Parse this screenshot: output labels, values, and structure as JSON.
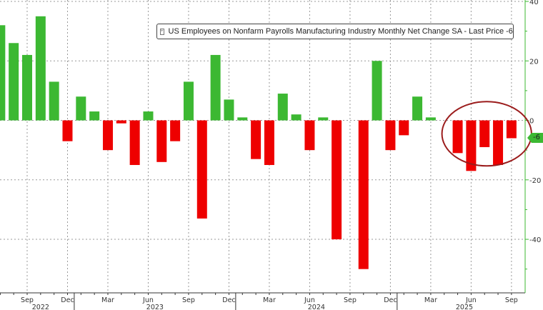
{
  "chart_data": {
    "type": "bar",
    "legend": {
      "label": "US Employees on Nonfarm Payrolls Manufacturing Industry Monthly Net Change SA - Last Price -6",
      "position": "top-center"
    },
    "last_price_label": "-6",
    "categories": [
      "Jul 2022",
      "Aug 2022",
      "Sep 2022",
      "Oct 2022",
      "Nov 2022",
      "Dec 2022",
      "Jan 2023",
      "Feb 2023",
      "Mar 2023",
      "Apr 2023",
      "May 2023",
      "Jun 2023",
      "Jul 2023",
      "Aug 2023",
      "Sep 2023",
      "Oct 2023",
      "Nov 2023",
      "Dec 2023",
      "Jan 2024",
      "Feb 2024",
      "Mar 2024",
      "Apr 2024",
      "May 2024",
      "Jun 2024",
      "Jul 2024",
      "Aug 2024",
      "Sep 2024",
      "Oct 2024",
      "Nov 2024",
      "Dec 2024",
      "Jan 2025",
      "Feb 2025",
      "Mar 2025",
      "Apr 2025",
      "May 2025",
      "Jun 2025",
      "Jul 2025",
      "Aug 2025",
      "Sep 2025"
    ],
    "values": [
      32,
      26,
      22,
      35,
      13,
      -7,
      8,
      3,
      -10,
      -1,
      -15,
      3,
      -14,
      -7,
      13,
      -33,
      22,
      7,
      1,
      -13,
      -15,
      9,
      2,
      -10,
      1,
      -40,
      0,
      -50,
      20,
      -10,
      -5,
      8,
      1,
      0,
      -11,
      -17,
      -9,
      -15,
      -6
    ],
    "positive_color": "#3cb832",
    "negative_color": "#ee0000",
    "ylim": [
      -58,
      40
    ],
    "yticks": [
      "40",
      "20",
      "0",
      "-20",
      "-40"
    ],
    "ytick_values": [
      40,
      20,
      0,
      -20,
      -40
    ],
    "y_axis_side": "right",
    "xtick_months": [
      "Sep",
      "Dec",
      "Mar",
      "Jun",
      "Sep",
      "Dec",
      "Mar",
      "Jun",
      "Sep",
      "Dec",
      "Mar",
      "Jun",
      "Sep"
    ],
    "xtick_indices": [
      2,
      5,
      8,
      11,
      14,
      17,
      20,
      23,
      26,
      29,
      32,
      35,
      38
    ],
    "years": [
      "2022",
      "2023",
      "2024",
      "2025"
    ],
    "year_label_indices": [
      3,
      11.5,
      23.5,
      34.5
    ],
    "year_separator_indices": [
      6,
      18,
      30
    ],
    "grid": true,
    "annotation": {
      "type": "ellipse",
      "color": "#9b1c1c",
      "around": [
        "May 2025",
        "Sep 2025"
      ]
    }
  }
}
